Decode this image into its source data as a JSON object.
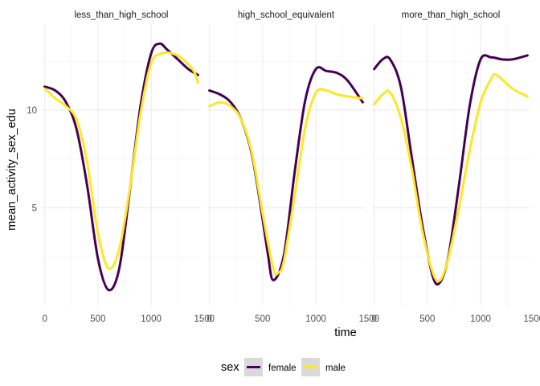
{
  "chart_data": {
    "type": "line",
    "facet_by": "education",
    "xlabel": "time",
    "ylabel": "mean_activity_sex_edu",
    "xlim": [
      -20,
      1460
    ],
    "ylim": [
      0,
      14.4
    ],
    "x_ticks": [
      0,
      500,
      1000,
      1500
    ],
    "x_tick_labels": [
      "0",
      "500",
      "1000",
      "1500"
    ],
    "y_ticks": [
      5,
      10
    ],
    "y_tick_labels": [
      "5",
      "10"
    ],
    "grid": true,
    "legend": {
      "title": "sex",
      "placement": "bottom",
      "entries": [
        "female",
        "male"
      ]
    },
    "colors": {
      "female": "#440154",
      "male": "#FDE725"
    },
    "panels": [
      {
        "title": "less_than_high_school",
        "series": [
          {
            "name": "female",
            "x": [
              0,
              100,
              200,
              300,
              400,
              500,
              600,
              700,
              800,
              900,
              1000,
              1080,
              1150,
              1250,
              1350,
              1440
            ],
            "values": [
              11.2,
              11.0,
              10.4,
              9.0,
              6.1,
              2.4,
              0.8,
              1.9,
              5.9,
              10.2,
              12.9,
              13.4,
              13.1,
              12.6,
              12.1,
              11.8
            ]
          },
          {
            "name": "male",
            "x": [
              0,
              100,
              200,
              300,
              400,
              500,
              600,
              700,
              800,
              900,
              1000,
              1100,
              1200,
              1300,
              1400,
              1440
            ],
            "values": [
              11.1,
              10.6,
              10.2,
              9.5,
              7.3,
              3.7,
              1.9,
              2.9,
              6.0,
              9.8,
              12.4,
              12.9,
              12.9,
              12.6,
              12.0,
              11.4
            ]
          }
        ]
      },
      {
        "title": "high_school_equivalent",
        "series": [
          {
            "name": "female",
            "x": [
              0,
              100,
              200,
              300,
              400,
              500,
              550,
              600,
              700,
              800,
              900,
              1000,
              1100,
              1200,
              1300,
              1440
            ],
            "values": [
              11.0,
              10.8,
              10.4,
              9.5,
              7.7,
              4.4,
              2.6,
              1.3,
              2.6,
              6.8,
              10.5,
              12.1,
              12.0,
              11.9,
              11.5,
              10.4
            ]
          },
          {
            "name": "male",
            "x": [
              0,
              100,
              200,
              300,
              400,
              500,
              600,
              650,
              700,
              800,
              900,
              1000,
              1100,
              1200,
              1300,
              1440
            ],
            "values": [
              10.2,
              10.4,
              10.2,
              9.5,
              7.8,
              4.7,
              1.9,
              1.7,
              2.3,
              5.6,
              9.1,
              10.9,
              11.0,
              10.8,
              10.7,
              10.6
            ]
          }
        ]
      },
      {
        "title": "more_than_high_school",
        "series": [
          {
            "name": "female",
            "x": [
              0,
              80,
              150,
              250,
              350,
              450,
              550,
              620,
              700,
              800,
              900,
              1000,
              1100,
              1200,
              1300,
              1440
            ],
            "values": [
              12.1,
              12.6,
              12.6,
              11.2,
              7.7,
              4.2,
              1.5,
              1.2,
              2.6,
              6.3,
              10.3,
              12.6,
              12.7,
              12.6,
              12.6,
              12.8
            ]
          },
          {
            "name": "male",
            "x": [
              0,
              80,
              150,
              250,
              350,
              450,
              550,
              620,
              700,
              800,
              900,
              1000,
              1100,
              1150,
              1300,
              1440
            ],
            "values": [
              10.3,
              10.8,
              10.9,
              9.6,
              7.1,
              3.9,
              1.7,
              1.3,
              2.5,
              5.1,
              8.0,
              10.4,
              11.6,
              11.8,
              11.1,
              10.7
            ]
          }
        ]
      }
    ]
  }
}
